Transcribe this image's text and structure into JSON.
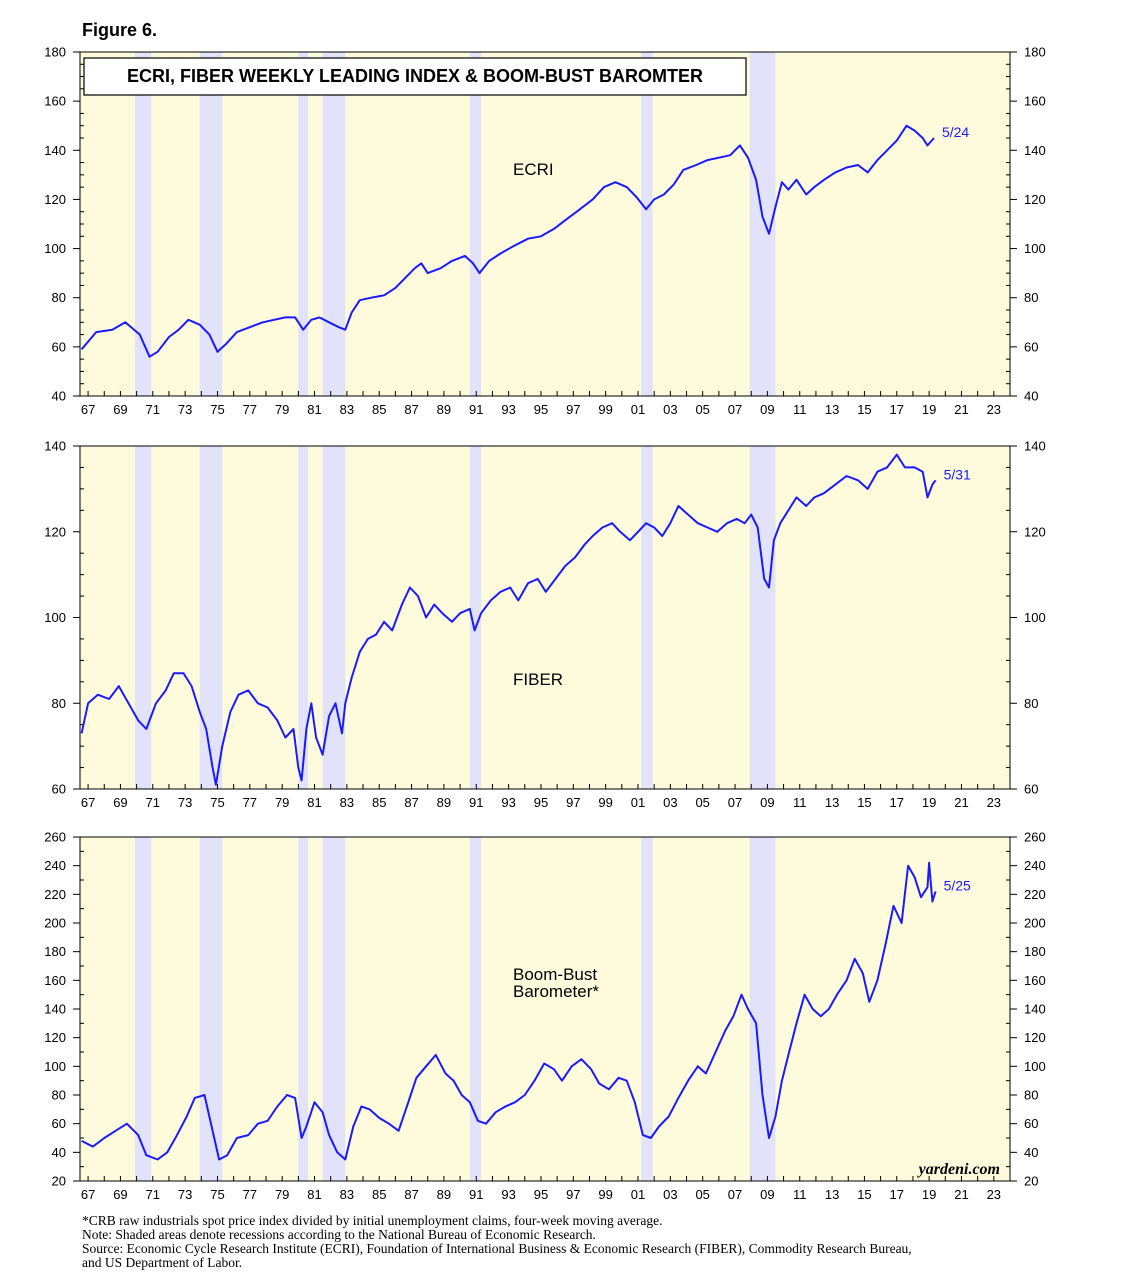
{
  "figure_label": "Figure 6.",
  "credit": "yardeni.com",
  "footnotes": [
    "*CRB raw industrials spot price index divided by initial unemployment claims, four-week moving average.",
    "Note: Shaded areas denote recessions according to the National Bureau of Economic Research.",
    "Source: Economic Cycle Research Institute (ECRI), Foundation of International Business & Economic Research (FIBER), Commodity Research Bureau,",
    "and US Department of Labor."
  ],
  "colors": {
    "background": "#fdfbdc",
    "recession": "#e2e2fa",
    "series": "#1a1aff"
  },
  "chart_data": [
    {
      "type": "line",
      "title": "ECRI, FIBER WEEKLY LEADING INDEX & BOOM-BUST BAROMTER",
      "series_label": "ECRI",
      "end_label": "5/24",
      "xlim": [
        1966.5,
        2024
      ],
      "ylim": [
        40,
        180
      ],
      "yticks": [
        40,
        60,
        80,
        100,
        120,
        140,
        160,
        180
      ],
      "xtick_labels": [
        "67",
        "69",
        "71",
        "73",
        "75",
        "77",
        "79",
        "81",
        "83",
        "85",
        "87",
        "89",
        "91",
        "93",
        "95",
        "97",
        "99",
        "01",
        "03",
        "05",
        "07",
        "09",
        "11",
        "13",
        "15",
        "17",
        "19",
        "21",
        "23"
      ],
      "recessions": [
        [
          1969.9,
          1970.9
        ],
        [
          1973.9,
          1975.3
        ],
        [
          1980.0,
          1980.6
        ],
        [
          1981.5,
          1982.9
        ],
        [
          1990.6,
          1991.3
        ],
        [
          2001.2,
          2001.9
        ],
        [
          2007.9,
          2009.5
        ]
      ],
      "points": [
        [
          1966.6,
          59
        ],
        [
          1967.5,
          66
        ],
        [
          1968.5,
          67
        ],
        [
          1969.3,
          70
        ],
        [
          1970.2,
          65
        ],
        [
          1970.8,
          56
        ],
        [
          1971.3,
          58
        ],
        [
          1972.0,
          64
        ],
        [
          1972.6,
          67
        ],
        [
          1973.2,
          71
        ],
        [
          1973.9,
          69
        ],
        [
          1974.5,
          65
        ],
        [
          1975.0,
          58
        ],
        [
          1975.5,
          61
        ],
        [
          1976.2,
          66
        ],
        [
          1977.0,
          68
        ],
        [
          1977.8,
          70
        ],
        [
          1978.5,
          71
        ],
        [
          1979.2,
          72
        ],
        [
          1979.8,
          72
        ],
        [
          1980.3,
          67
        ],
        [
          1980.8,
          71
        ],
        [
          1981.3,
          72
        ],
        [
          1981.9,
          70
        ],
        [
          1982.5,
          68
        ],
        [
          1982.9,
          67
        ],
        [
          1983.3,
          74
        ],
        [
          1983.8,
          79
        ],
        [
          1984.5,
          80
        ],
        [
          1985.3,
          81
        ],
        [
          1986.0,
          84
        ],
        [
          1986.6,
          88
        ],
        [
          1987.2,
          92
        ],
        [
          1987.6,
          94
        ],
        [
          1988.0,
          90
        ],
        [
          1988.8,
          92
        ],
        [
          1989.5,
          95
        ],
        [
          1990.3,
          97
        ],
        [
          1990.8,
          94
        ],
        [
          1991.2,
          90
        ],
        [
          1991.8,
          95
        ],
        [
          1992.5,
          98
        ],
        [
          1993.3,
          101
        ],
        [
          1994.2,
          104
        ],
        [
          1995.0,
          105
        ],
        [
          1995.8,
          108
        ],
        [
          1996.6,
          112
        ],
        [
          1997.4,
          116
        ],
        [
          1998.2,
          120
        ],
        [
          1998.9,
          125
        ],
        [
          1999.6,
          127
        ],
        [
          2000.3,
          125
        ],
        [
          2000.9,
          121
        ],
        [
          2001.5,
          116
        ],
        [
          2002.0,
          120
        ],
        [
          2002.6,
          122
        ],
        [
          2003.2,
          126
        ],
        [
          2003.8,
          132
        ],
        [
          2004.6,
          134
        ],
        [
          2005.3,
          136
        ],
        [
          2006.0,
          137
        ],
        [
          2006.7,
          138
        ],
        [
          2007.3,
          142
        ],
        [
          2007.8,
          137
        ],
        [
          2008.3,
          128
        ],
        [
          2008.7,
          113
        ],
        [
          2009.1,
          106
        ],
        [
          2009.5,
          117
        ],
        [
          2009.9,
          127
        ],
        [
          2010.3,
          124
        ],
        [
          2010.8,
          128
        ],
        [
          2011.4,
          122
        ],
        [
          2011.9,
          125
        ],
        [
          2012.5,
          128
        ],
        [
          2013.2,
          131
        ],
        [
          2013.9,
          133
        ],
        [
          2014.6,
          134
        ],
        [
          2015.2,
          131
        ],
        [
          2015.8,
          136
        ],
        [
          2016.4,
          140
        ],
        [
          2017.0,
          144
        ],
        [
          2017.6,
          150
        ],
        [
          2018.1,
          148
        ],
        [
          2018.6,
          145
        ],
        [
          2018.9,
          142
        ],
        [
          2019.3,
          145
        ]
      ]
    },
    {
      "type": "line",
      "series_label": "FIBER",
      "end_label": "5/31",
      "xlim": [
        1966.5,
        2024
      ],
      "ylim": [
        60,
        140
      ],
      "yticks": [
        60,
        80,
        100,
        120,
        140
      ],
      "xtick_labels": [
        "67",
        "69",
        "71",
        "73",
        "75",
        "77",
        "79",
        "81",
        "83",
        "85",
        "87",
        "89",
        "91",
        "93",
        "95",
        "97",
        "99",
        "01",
        "03",
        "05",
        "07",
        "09",
        "11",
        "13",
        "15",
        "17",
        "19",
        "21",
        "23"
      ],
      "recessions": [
        [
          1969.9,
          1970.9
        ],
        [
          1973.9,
          1975.3
        ],
        [
          1980.0,
          1980.6
        ],
        [
          1981.5,
          1982.9
        ],
        [
          1990.6,
          1991.3
        ],
        [
          2001.2,
          2001.9
        ],
        [
          2007.9,
          2009.5
        ]
      ],
      "points": [
        [
          1966.6,
          73
        ],
        [
          1967.0,
          80
        ],
        [
          1967.6,
          82
        ],
        [
          1968.3,
          81
        ],
        [
          1968.9,
          84
        ],
        [
          1969.5,
          80
        ],
        [
          1970.1,
          76
        ],
        [
          1970.6,
          74
        ],
        [
          1971.2,
          80
        ],
        [
          1971.8,
          83
        ],
        [
          1972.3,
          87
        ],
        [
          1972.9,
          87
        ],
        [
          1973.4,
          84
        ],
        [
          1973.9,
          78
        ],
        [
          1974.3,
          74
        ],
        [
          1974.7,
          65
        ],
        [
          1974.9,
          61
        ],
        [
          1975.3,
          70
        ],
        [
          1975.8,
          78
        ],
        [
          1976.3,
          82
        ],
        [
          1976.9,
          83
        ],
        [
          1977.5,
          80
        ],
        [
          1978.1,
          79
        ],
        [
          1978.7,
          76
        ],
        [
          1979.2,
          72
        ],
        [
          1979.7,
          74
        ],
        [
          1980.0,
          65
        ],
        [
          1980.2,
          62
        ],
        [
          1980.5,
          74
        ],
        [
          1980.8,
          80
        ],
        [
          1981.1,
          72
        ],
        [
          1981.5,
          68
        ],
        [
          1981.9,
          77
        ],
        [
          1982.3,
          80
        ],
        [
          1982.7,
          73
        ],
        [
          1982.9,
          80
        ],
        [
          1983.3,
          86
        ],
        [
          1983.8,
          92
        ],
        [
          1984.3,
          95
        ],
        [
          1984.8,
          96
        ],
        [
          1985.3,
          99
        ],
        [
          1985.8,
          97
        ],
        [
          1986.4,
          103
        ],
        [
          1986.9,
          107
        ],
        [
          1987.4,
          105
        ],
        [
          1987.9,
          100
        ],
        [
          1988.4,
          103
        ],
        [
          1988.9,
          101
        ],
        [
          1989.5,
          99
        ],
        [
          1990.0,
          101
        ],
        [
          1990.6,
          102
        ],
        [
          1990.9,
          97
        ],
        [
          1991.3,
          101
        ],
        [
          1991.9,
          104
        ],
        [
          1992.5,
          106
        ],
        [
          1993.1,
          107
        ],
        [
          1993.6,
          104
        ],
        [
          1994.2,
          108
        ],
        [
          1994.8,
          109
        ],
        [
          1995.3,
          106
        ],
        [
          1995.9,
          109
        ],
        [
          1996.5,
          112
        ],
        [
          1997.1,
          114
        ],
        [
          1997.7,
          117
        ],
        [
          1998.2,
          119
        ],
        [
          1998.8,
          121
        ],
        [
          1999.4,
          122
        ],
        [
          1999.9,
          120
        ],
        [
          2000.5,
          118
        ],
        [
          2001.0,
          120
        ],
        [
          2001.5,
          122
        ],
        [
          2002.0,
          121
        ],
        [
          2002.5,
          119
        ],
        [
          2003.0,
          122
        ],
        [
          2003.5,
          126
        ],
        [
          2004.1,
          124
        ],
        [
          2004.7,
          122
        ],
        [
          2005.3,
          121
        ],
        [
          2005.9,
          120
        ],
        [
          2006.5,
          122
        ],
        [
          2007.1,
          123
        ],
        [
          2007.6,
          122
        ],
        [
          2008.0,
          124
        ],
        [
          2008.4,
          121
        ],
        [
          2008.8,
          109
        ],
        [
          2009.1,
          107
        ],
        [
          2009.4,
          118
        ],
        [
          2009.8,
          122
        ],
        [
          2010.3,
          125
        ],
        [
          2010.8,
          128
        ],
        [
          2011.4,
          126
        ],
        [
          2011.9,
          128
        ],
        [
          2012.5,
          129
        ],
        [
          2013.2,
          131
        ],
        [
          2013.9,
          133
        ],
        [
          2014.6,
          132
        ],
        [
          2015.2,
          130
        ],
        [
          2015.8,
          134
        ],
        [
          2016.4,
          135
        ],
        [
          2017.0,
          138
        ],
        [
          2017.5,
          135
        ],
        [
          2018.1,
          135
        ],
        [
          2018.6,
          134
        ],
        [
          2018.9,
          128
        ],
        [
          2019.2,
          131
        ],
        [
          2019.4,
          132
        ]
      ]
    },
    {
      "type": "line",
      "series_label": [
        "Boom-Bust",
        "Barometer*"
      ],
      "end_label": "5/25",
      "xlim": [
        1966.5,
        2024
      ],
      "ylim": [
        20,
        260
      ],
      "yticks": [
        20,
        40,
        60,
        80,
        100,
        120,
        140,
        160,
        180,
        200,
        220,
        240,
        260
      ],
      "xtick_labels": [
        "67",
        "69",
        "71",
        "73",
        "75",
        "77",
        "79",
        "81",
        "83",
        "85",
        "87",
        "89",
        "91",
        "93",
        "95",
        "97",
        "99",
        "01",
        "03",
        "05",
        "07",
        "09",
        "11",
        "13",
        "15",
        "17",
        "19",
        "21",
        "23"
      ],
      "recessions": [
        [
          1969.9,
          1970.9
        ],
        [
          1973.9,
          1975.3
        ],
        [
          1980.0,
          1980.6
        ],
        [
          1981.5,
          1982.9
        ],
        [
          1990.6,
          1991.3
        ],
        [
          2001.2,
          2001.9
        ],
        [
          2007.9,
          2009.5
        ]
      ],
      "points": [
        [
          1966.6,
          48
        ],
        [
          1967.3,
          44
        ],
        [
          1968.0,
          50
        ],
        [
          1968.7,
          55
        ],
        [
          1969.4,
          60
        ],
        [
          1970.1,
          52
        ],
        [
          1970.6,
          38
        ],
        [
          1971.3,
          35
        ],
        [
          1971.9,
          40
        ],
        [
          1972.5,
          52
        ],
        [
          1973.1,
          65
        ],
        [
          1973.6,
          78
        ],
        [
          1974.2,
          80
        ],
        [
          1974.7,
          55
        ],
        [
          1975.1,
          35
        ],
        [
          1975.6,
          38
        ],
        [
          1976.2,
          50
        ],
        [
          1976.9,
          52
        ],
        [
          1977.5,
          60
        ],
        [
          1978.1,
          62
        ],
        [
          1978.7,
          72
        ],
        [
          1979.3,
          80
        ],
        [
          1979.8,
          78
        ],
        [
          1980.2,
          50
        ],
        [
          1980.5,
          58
        ],
        [
          1981.0,
          75
        ],
        [
          1981.5,
          68
        ],
        [
          1981.9,
          52
        ],
        [
          1982.4,
          40
        ],
        [
          1982.9,
          35
        ],
        [
          1983.4,
          58
        ],
        [
          1983.9,
          72
        ],
        [
          1984.4,
          70
        ],
        [
          1985.0,
          64
        ],
        [
          1985.6,
          60
        ],
        [
          1986.2,
          55
        ],
        [
          1986.8,
          75
        ],
        [
          1987.3,
          92
        ],
        [
          1987.9,
          100
        ],
        [
          1988.5,
          108
        ],
        [
          1989.1,
          95
        ],
        [
          1989.6,
          90
        ],
        [
          1990.1,
          80
        ],
        [
          1990.6,
          75
        ],
        [
          1991.1,
          62
        ],
        [
          1991.6,
          60
        ],
        [
          1992.2,
          68
        ],
        [
          1992.8,
          72
        ],
        [
          1993.4,
          75
        ],
        [
          1994.0,
          80
        ],
        [
          1994.6,
          90
        ],
        [
          1995.2,
          102
        ],
        [
          1995.8,
          98
        ],
        [
          1996.3,
          90
        ],
        [
          1996.9,
          100
        ],
        [
          1997.5,
          105
        ],
        [
          1998.1,
          98
        ],
        [
          1998.6,
          88
        ],
        [
          1999.2,
          84
        ],
        [
          1999.8,
          92
        ],
        [
          2000.3,
          90
        ],
        [
          2000.8,
          75
        ],
        [
          2001.3,
          52
        ],
        [
          2001.8,
          50
        ],
        [
          2002.3,
          58
        ],
        [
          2002.9,
          65
        ],
        [
          2003.5,
          78
        ],
        [
          2004.1,
          90
        ],
        [
          2004.7,
          100
        ],
        [
          2005.2,
          95
        ],
        [
          2005.8,
          110
        ],
        [
          2006.4,
          125
        ],
        [
          2006.9,
          135
        ],
        [
          2007.4,
          150
        ],
        [
          2007.8,
          140
        ],
        [
          2008.3,
          130
        ],
        [
          2008.7,
          80
        ],
        [
          2009.1,
          50
        ],
        [
          2009.5,
          65
        ],
        [
          2009.9,
          90
        ],
        [
          2010.3,
          108
        ],
        [
          2010.8,
          130
        ],
        [
          2011.3,
          150
        ],
        [
          2011.8,
          140
        ],
        [
          2012.3,
          135
        ],
        [
          2012.8,
          140
        ],
        [
          2013.3,
          150
        ],
        [
          2013.9,
          160
        ],
        [
          2014.4,
          175
        ],
        [
          2014.9,
          165
        ],
        [
          2015.3,
          145
        ],
        [
          2015.8,
          160
        ],
        [
          2016.3,
          185
        ],
        [
          2016.8,
          212
        ],
        [
          2017.3,
          200
        ],
        [
          2017.7,
          240
        ],
        [
          2018.1,
          232
        ],
        [
          2018.5,
          218
        ],
        [
          2018.9,
          225
        ],
        [
          2019.0,
          242
        ],
        [
          2019.2,
          215
        ],
        [
          2019.4,
          222
        ]
      ]
    }
  ]
}
